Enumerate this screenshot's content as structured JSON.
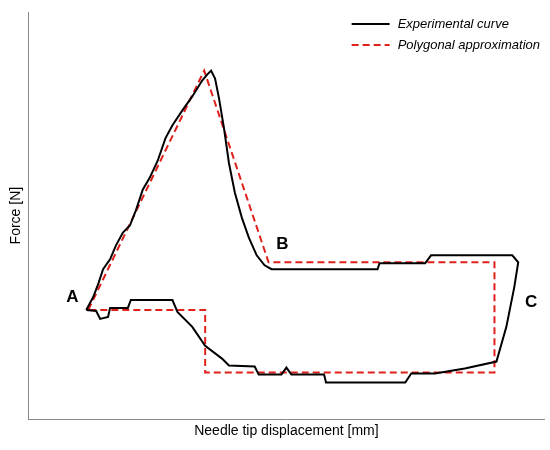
{
  "chart_data": {
    "type": "line",
    "x_label": "Needle tip displacement [mm]",
    "y_label": "Force [N]",
    "xlim": [
      -6,
      46
    ],
    "ylim": [
      -11,
      30
    ],
    "grid": false,
    "tick_labels": false,
    "legend": "upper right",
    "series": [
      {
        "name": "Experimental curve",
        "color": "#000000",
        "line_style": "solid",
        "marker": "none",
        "x": [
          -0.2,
          0.5,
          1.0,
          1.5,
          2.2,
          2.8,
          3.5,
          4.2,
          4.8,
          5.5,
          6.2,
          7.0,
          7.8,
          8.5,
          9.5,
          10.5,
          11.5,
          12.0,
          12.4,
          12.8,
          13.2,
          13.7,
          14.2,
          14.8,
          15.5,
          16.2,
          17.0,
          17.8,
          18.5,
          29.2,
          29.4,
          34.0,
          34.6,
          42.8,
          43.4,
          43.0,
          42.2,
          41.2,
          38.0,
          35.0,
          32.6,
          32.0,
          24.0,
          23.8,
          20.5,
          20.0,
          19.5,
          17.2,
          16.8,
          14.2,
          13.5,
          11.8,
          10.5,
          9.0,
          8.5,
          4.3,
          4.0,
          2.2,
          2.0,
          1.2,
          0.8,
          -0.2
        ],
        "values": [
          0,
          1.3,
          2.6,
          4.1,
          5.1,
          6.5,
          7.8,
          8.5,
          10.0,
          12.1,
          13.3,
          15.0,
          17.3,
          18.6,
          20.1,
          21.5,
          23.1,
          23.7,
          24.1,
          23.3,
          21.3,
          18.3,
          14.8,
          11.8,
          9.3,
          7.3,
          5.5,
          4.5,
          4.1,
          4.1,
          4.7,
          4.7,
          5.5,
          5.5,
          4.8,
          2.3,
          -1.7,
          -5.2,
          -5.9,
          -6.4,
          -6.4,
          -7.3,
          -7.3,
          -6.5,
          -6.5,
          -5.8,
          -6.5,
          -6.5,
          -5.7,
          -5.6,
          -4.9,
          -3.6,
          -1.7,
          -0.2,
          1.0,
          1.0,
          0.2,
          0.2,
          -0.7,
          -0.9,
          -0.1,
          0
        ]
      },
      {
        "name": "Polygonal approximation",
        "color": "#e0201b",
        "line_style": "dashed",
        "marker": "none",
        "x": [
          0,
          11.7,
          18.2,
          41,
          41,
          11.8,
          11.8,
          0
        ],
        "values": [
          0,
          24.1,
          4.8,
          4.8,
          -6.3,
          -6.3,
          0,
          0
        ]
      }
    ],
    "annotations": [
      {
        "text": "A",
        "x": -1.6,
        "y": 1.3
      },
      {
        "text": "B",
        "x": 19.6,
        "y": 6.6
      },
      {
        "text": "C",
        "x": 44.7,
        "y": 0.8
      }
    ]
  }
}
